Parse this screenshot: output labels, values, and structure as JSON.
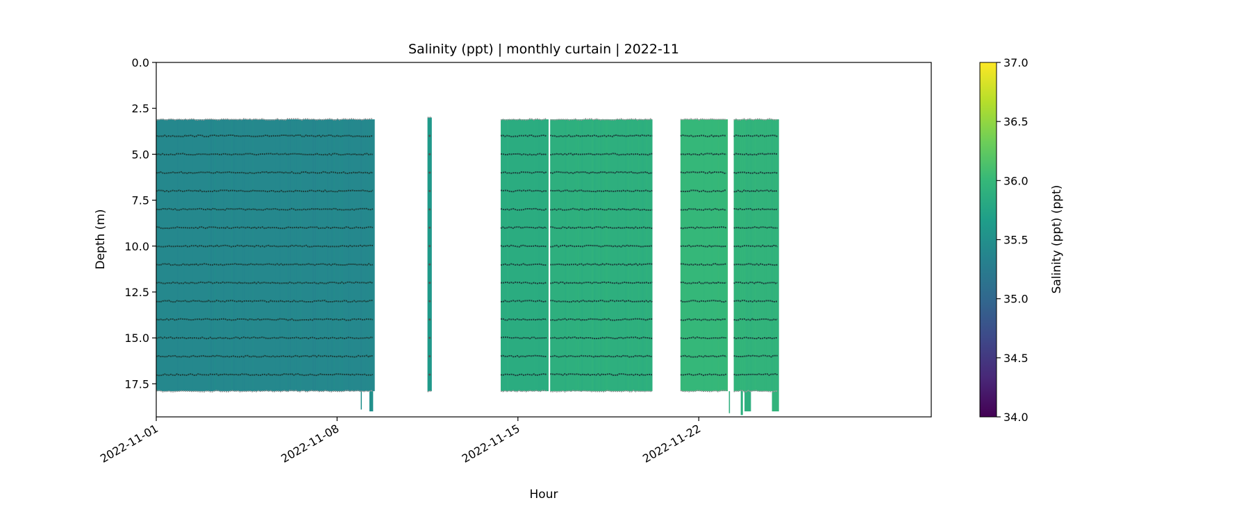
{
  "chart_data": {
    "type": "heatmap",
    "title": "Salinity (ppt) | monthly curtain | 2022-11",
    "xlabel": "Hour",
    "ylabel": "Depth (m)",
    "colorbar_label": "Salinity (ppt) (ppt)",
    "colormap": "viridis",
    "clim": [
      34.0,
      37.0
    ],
    "colorbar_ticks": [
      "34.0",
      "34.5",
      "35.0",
      "35.5",
      "36.0",
      "36.5",
      "37.0"
    ],
    "xlim": [
      "2022-11-01",
      "2022-12-01"
    ],
    "x_ticks": [
      "2022-11-01",
      "2022-11-08",
      "2022-11-15",
      "2022-11-22"
    ],
    "ylim": [
      19.3,
      0.0
    ],
    "y_inverted": true,
    "y_ticks": [
      "0.0",
      "2.5",
      "5.0",
      "7.5",
      "10.0",
      "12.5",
      "15.0",
      "17.5"
    ],
    "grid": false,
    "sensor_depths_m": [
      4,
      5,
      6,
      7,
      8,
      9,
      10,
      11,
      12,
      13,
      14,
      15,
      16,
      17
    ],
    "segments": [
      {
        "start": "2022-11-01T00:00",
        "end": "2022-11-09T11:00",
        "depth_top": 3.1,
        "depth_bottom": 17.9,
        "salinity": 35.4
      },
      {
        "start": "2022-11-11T12:00",
        "end": "2022-11-11T16:00",
        "depth_top": 3.0,
        "depth_bottom": 17.9,
        "salinity": 35.6
      },
      {
        "start": "2022-11-14T08:00",
        "end": "2022-11-16T04:30",
        "depth_top": 3.1,
        "depth_bottom": 17.9,
        "salinity": 35.85
      },
      {
        "start": "2022-11-16T06:00",
        "end": "2022-11-20T05:00",
        "depth_top": 3.1,
        "depth_bottom": 17.9,
        "salinity": 35.9
      },
      {
        "start": "2022-11-21T07:00",
        "end": "2022-11-23T03:00",
        "depth_top": 3.1,
        "depth_bottom": 17.9,
        "salinity": 36.0
      },
      {
        "start": "2022-11-23T08:30",
        "end": "2022-11-25T02:30",
        "depth_top": 3.1,
        "depth_bottom": 17.9,
        "salinity": 35.95
      }
    ],
    "deep_extensions": [
      {
        "start": "2022-11-08T22:00",
        "end": "2022-11-08T23:00",
        "depth_bottom": 18.9,
        "salinity": 35.5
      },
      {
        "start": "2022-11-09T06:00",
        "end": "2022-11-09T09:30",
        "depth_bottom": 19.0,
        "salinity": 35.5
      },
      {
        "start": "2022-11-23T04:00",
        "end": "2022-11-23T05:00",
        "depth_bottom": 19.1,
        "salinity": 35.9
      },
      {
        "start": "2022-11-23T15:00",
        "end": "2022-11-23T17:00",
        "depth_bottom": 19.2,
        "salinity": 35.9
      },
      {
        "start": "2022-11-23T18:30",
        "end": "2022-11-24T00:30",
        "depth_bottom": 19.0,
        "salinity": 35.9
      },
      {
        "start": "2022-11-24T20:00",
        "end": "2022-11-25T02:30",
        "depth_bottom": 19.0,
        "salinity": 35.95
      }
    ]
  }
}
